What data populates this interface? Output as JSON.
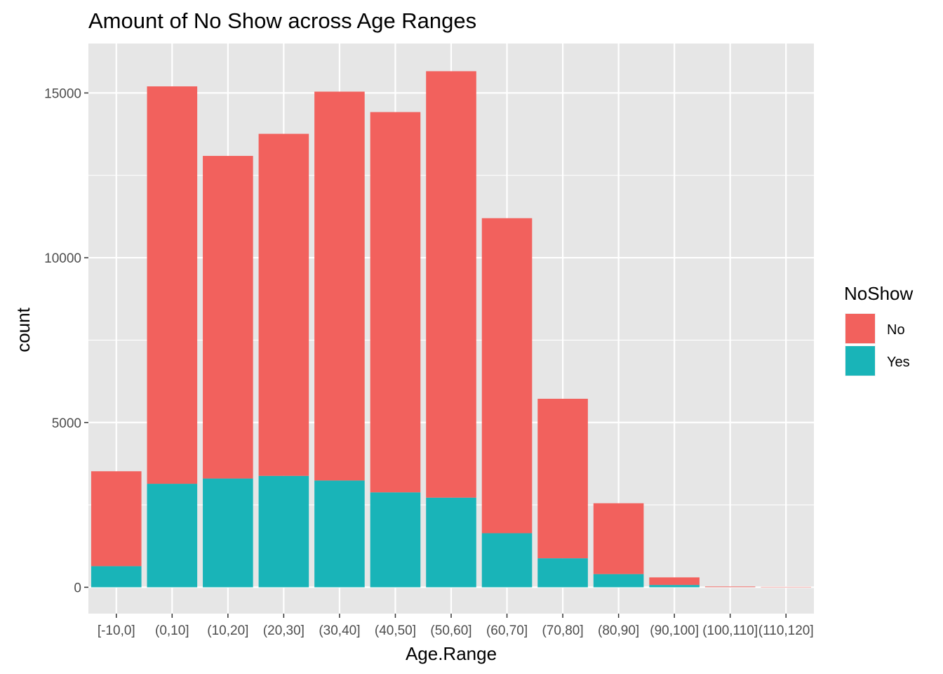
{
  "chart_data": {
    "type": "bar",
    "stacked": true,
    "title": "Amount of No Show across Age Ranges",
    "xlabel": "Age.Range",
    "ylabel": "count",
    "ylim": [
      -800,
      16500
    ],
    "yticks": [
      0,
      5000,
      10000,
      15000
    ],
    "categories": [
      "[-10,0]",
      "(0,10]",
      "(10,20]",
      "(20,30]",
      "(30,40]",
      "(40,50]",
      "(50,60]",
      "(60,70]",
      "(70,80]",
      "(80,90]",
      "(90,100]",
      "(100,110]",
      "(110,120]"
    ],
    "series": [
      {
        "name": "Yes",
        "color": "#19B4B8",
        "values": [
          640,
          3140,
          3300,
          3380,
          3240,
          2880,
          2720,
          1640,
          880,
          400,
          70,
          3,
          1
        ]
      },
      {
        "name": "No",
        "color": "#F2615D",
        "values": [
          2880,
          12060,
          9790,
          10380,
          11800,
          11540,
          12940,
          9560,
          4840,
          2150,
          230,
          20,
          10
        ]
      }
    ],
    "legend": {
      "title": "NoShow",
      "placement": "right",
      "entries": [
        {
          "name": "No",
          "color": "#F2615D"
        },
        {
          "name": "Yes",
          "color": "#19B4B8"
        }
      ]
    },
    "grid": true,
    "panel_background": "#E6E6E6",
    "grid_color": "#FFFFFF"
  }
}
